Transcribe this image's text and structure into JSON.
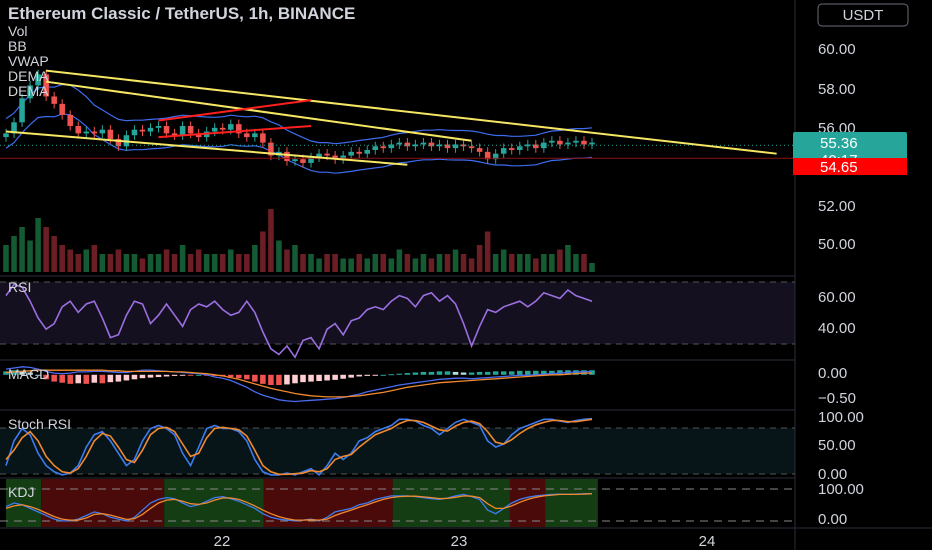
{
  "header": {
    "title": "Ethereum Classic / TetherUS, 1h, BINANCE",
    "currency_button": "USDT",
    "indicators": [
      "Vol",
      "BB",
      "VWAP",
      "DEMA",
      "DEMA"
    ]
  },
  "price_badges": [
    {
      "text": "55.36",
      "color": "#26a69a"
    },
    {
      "text": "40:17",
      "color": "#26a69a"
    },
    {
      "text": "54.65",
      "color": "#ff0000"
    }
  ],
  "colors": {
    "up": "#26a69a",
    "down": "#ef5350",
    "trendline": "#f5e663",
    "channel": "#ff1f1f",
    "bb": "#3d6cf0",
    "rsi": "#9b6fe0",
    "macd_line": "#4a6cf0",
    "signal_line": "#f08a30",
    "stoch_k": "#3d7cf0",
    "stoch_d": "#f08a30"
  },
  "chart_data": [
    {
      "panel": "price",
      "type": "candlestick",
      "x_ticks": [
        "22",
        "23",
        "24"
      ],
      "y_ticks": [
        "60.00",
        "58.00",
        "56.00",
        "52.00",
        "50.00"
      ],
      "ylim": [
        48.6,
        61.6
      ],
      "close": [
        56.0,
        56.6,
        57.9,
        58.6,
        59.2,
        58.0,
        57.6,
        57.0,
        56.4,
        56.0,
        56.1,
        56.0,
        56.2,
        55.7,
        55.3,
        55.9,
        56.2,
        56.1,
        56.3,
        56.4,
        56.0,
        55.9,
        56.4,
        56.0,
        55.8,
        56.1,
        56.3,
        56.2,
        56.5,
        56.0,
        55.8,
        56.0,
        55.5,
        54.8,
        55.0,
        54.5,
        54.6,
        54.4,
        54.7,
        54.9,
        54.8,
        54.6,
        54.8,
        55.0,
        54.9,
        55.1,
        55.3,
        55.2,
        55.4,
        55.5,
        55.3,
        55.4,
        55.5,
        55.3,
        55.4,
        55.2,
        55.4,
        55.3,
        55.2,
        55.0,
        54.6,
        54.9,
        55.2,
        55.1,
        55.3,
        55.4,
        55.2,
        55.5,
        55.6,
        55.4,
        55.5,
        55.6,
        55.4,
        55.5
      ],
      "volume": [
        0.3,
        0.4,
        0.5,
        0.35,
        0.6,
        0.5,
        0.4,
        0.3,
        0.25,
        0.2,
        0.25,
        0.3,
        0.2,
        0.2,
        0.25,
        0.2,
        0.2,
        0.15,
        0.2,
        0.2,
        0.25,
        0.2,
        0.3,
        0.2,
        0.25,
        0.2,
        0.2,
        0.2,
        0.25,
        0.2,
        0.2,
        0.3,
        0.45,
        0.7,
        0.35,
        0.25,
        0.3,
        0.2,
        0.2,
        0.15,
        0.2,
        0.2,
        0.15,
        0.15,
        0.2,
        0.15,
        0.2,
        0.2,
        0.15,
        0.25,
        0.2,
        0.15,
        0.2,
        0.15,
        0.2,
        0.2,
        0.25,
        0.2,
        0.15,
        0.3,
        0.45,
        0.2,
        0.25,
        0.2,
        0.2,
        0.2,
        0.15,
        0.2,
        0.2,
        0.25,
        0.3,
        0.2,
        0.2,
        0.1
      ]
    },
    {
      "panel": "rsi",
      "type": "line",
      "title": "RSI",
      "y_ticks": [
        "60.00",
        "40.00"
      ],
      "ylim": [
        20,
        80
      ],
      "values": [
        66,
        74,
        72,
        62,
        50,
        42,
        46,
        58,
        62,
        54,
        60,
        62,
        50,
        36,
        38,
        52,
        62,
        60,
        46,
        52,
        60,
        52,
        44,
        56,
        60,
        58,
        62,
        56,
        52,
        54,
        62,
        54,
        40,
        28,
        24,
        30,
        22,
        34,
        36,
        28,
        42,
        46,
        38,
        48,
        50,
        56,
        58,
        56,
        62,
        66,
        64,
        58,
        66,
        68,
        62,
        66,
        60,
        46,
        30,
        44,
        56,
        54,
        58,
        60,
        62,
        58,
        62,
        68,
        66,
        64,
        70,
        66,
        64,
        62
      ]
    },
    {
      "panel": "macd",
      "type": "bar",
      "title": "MACD",
      "y_ticks": [
        "0.00",
        "−0.50"
      ],
      "ylim": [
        -0.62,
        0.26
      ],
      "histogram": [
        0.06,
        0.08,
        0.07,
        0.04,
        0.0,
        -0.08,
        -0.12,
        -0.14,
        -0.16,
        -0.15,
        -0.16,
        -0.14,
        -0.15,
        -0.13,
        -0.12,
        -0.1,
        -0.08,
        -0.06,
        -0.05,
        -0.04,
        -0.03,
        -0.02,
        -0.01,
        -0.01,
        0.0,
        -0.01,
        -0.02,
        -0.03,
        -0.04,
        -0.06,
        -0.08,
        -0.12,
        -0.16,
        -0.18,
        -0.18,
        -0.17,
        -0.15,
        -0.13,
        -0.12,
        -0.11,
        -0.1,
        -0.09,
        -0.07,
        -0.05,
        -0.03,
        -0.02,
        -0.01,
        0.0,
        0.01,
        0.02,
        0.03,
        0.04,
        0.05,
        0.05,
        0.06,
        0.06,
        0.05,
        0.04,
        0.04,
        0.05,
        0.05,
        0.06,
        0.06,
        0.06,
        0.07,
        0.07,
        0.07,
        0.07,
        0.07,
        0.08,
        0.08,
        0.08,
        0.08,
        0.08
      ],
      "macd": [
        0.1,
        0.12,
        0.14,
        0.13,
        0.1,
        0.06,
        0.03,
        0.02,
        0.03,
        0.05,
        0.05,
        0.06,
        0.06,
        0.05,
        0.04,
        0.04,
        0.06,
        0.08,
        0.08,
        0.07,
        0.06,
        0.05,
        0.04,
        0.03,
        0.02,
        0.0,
        -0.04,
        -0.06,
        -0.1,
        -0.16,
        -0.22,
        -0.3,
        -0.36,
        -0.4,
        -0.44,
        -0.46,
        -0.47,
        -0.46,
        -0.45,
        -0.44,
        -0.43,
        -0.42,
        -0.4,
        -0.37,
        -0.34,
        -0.3,
        -0.27,
        -0.24,
        -0.21,
        -0.18,
        -0.16,
        -0.14,
        -0.12,
        -0.1,
        -0.08,
        -0.07,
        -0.06,
        -0.06,
        -0.07,
        -0.06,
        -0.05,
        -0.04,
        -0.03,
        -0.02,
        -0.01,
        -0.01,
        0.0,
        0.01,
        0.02,
        0.03,
        0.04,
        0.05,
        0.05,
        0.06
      ],
      "signal": [
        0.04,
        0.05,
        0.06,
        0.07,
        0.08,
        0.08,
        0.08,
        0.08,
        0.08,
        0.08,
        0.08,
        0.08,
        0.08,
        0.07,
        0.07,
        0.06,
        0.06,
        0.06,
        0.06,
        0.06,
        0.06,
        0.05,
        0.05,
        0.04,
        0.03,
        0.02,
        0.0,
        -0.02,
        -0.05,
        -0.08,
        -0.12,
        -0.16,
        -0.2,
        -0.24,
        -0.27,
        -0.3,
        -0.33,
        -0.35,
        -0.37,
        -0.38,
        -0.39,
        -0.39,
        -0.39,
        -0.38,
        -0.37,
        -0.35,
        -0.33,
        -0.31,
        -0.28,
        -0.25,
        -0.22,
        -0.2,
        -0.18,
        -0.16,
        -0.14,
        -0.13,
        -0.12,
        -0.11,
        -0.1,
        -0.09,
        -0.08,
        -0.07,
        -0.06,
        -0.05,
        -0.04,
        -0.03,
        -0.02,
        -0.01,
        0.0,
        0.0,
        0.01,
        0.02,
        0.03,
        0.03
      ]
    },
    {
      "panel": "stoch_rsi",
      "type": "line",
      "title": "Stoch RSI",
      "y_ticks": [
        "100.00",
        "50.00",
        "0.00"
      ],
      "ylim": [
        0,
        110
      ],
      "k": [
        20,
        60,
        80,
        70,
        40,
        20,
        10,
        5,
        8,
        20,
        50,
        70,
        75,
        60,
        40,
        20,
        30,
        60,
        80,
        85,
        80,
        70,
        40,
        20,
        50,
        80,
        85,
        80,
        80,
        75,
        60,
        30,
        10,
        5,
        5,
        8,
        5,
        10,
        15,
        5,
        20,
        40,
        30,
        40,
        60,
        65,
        75,
        80,
        85,
        95,
        95,
        92,
        85,
        80,
        70,
        80,
        90,
        95,
        90,
        85,
        60,
        50,
        55,
        70,
        80,
        85,
        90,
        95,
        95,
        92,
        90,
        93,
        95,
        96
      ],
      "d": [
        30,
        45,
        65,
        75,
        60,
        35,
        20,
        10,
        8,
        15,
        35,
        60,
        72,
        68,
        50,
        30,
        25,
        45,
        70,
        80,
        82,
        75,
        55,
        35,
        40,
        65,
        80,
        82,
        80,
        78,
        68,
        45,
        20,
        10,
        6,
        6,
        7,
        8,
        12,
        10,
        15,
        30,
        35,
        38,
        50,
        60,
        70,
        75,
        80,
        88,
        93,
        93,
        90,
        84,
        78,
        76,
        84,
        90,
        92,
        88,
        75,
        58,
        55,
        62,
        72,
        80,
        86,
        90,
        93,
        93,
        91,
        91,
        93,
        95
      ]
    },
    {
      "panel": "kdj",
      "type": "line",
      "title": "KDJ",
      "y_ticks": [
        "100.00",
        "0.00"
      ],
      "ylim": [
        -10,
        130
      ],
      "k": [
        50,
        60,
        55,
        45,
        35,
        25,
        15,
        10,
        10,
        15,
        25,
        35,
        30,
        20,
        15,
        10,
        20,
        40,
        60,
        70,
        75,
        72,
        60,
        50,
        55,
        65,
        75,
        78,
        72,
        65,
        55,
        45,
        30,
        20,
        15,
        12,
        10,
        12,
        15,
        10,
        20,
        35,
        40,
        45,
        55,
        60,
        70,
        75,
        80,
        80,
        80,
        78,
        75,
        72,
        70,
        74,
        80,
        84,
        78,
        70,
        40,
        30,
        45,
        60,
        70,
        76,
        80,
        82,
        84,
        85,
        84,
        85,
        86,
        86
      ],
      "d": [
        45,
        52,
        55,
        50,
        42,
        32,
        22,
        15,
        12,
        12,
        18,
        28,
        30,
        26,
        20,
        14,
        16,
        28,
        45,
        60,
        68,
        70,
        65,
        58,
        56,
        60,
        68,
        74,
        74,
        70,
        62,
        52,
        40,
        30,
        22,
        16,
        12,
        12,
        13,
        12,
        15,
        25,
        33,
        40,
        48,
        55,
        63,
        70,
        75,
        78,
        79,
        79,
        77,
        75,
        72,
        73,
        76,
        80,
        79,
        75,
        58,
        45,
        45,
        52,
        62,
        70,
        76,
        80,
        82,
        84,
        84,
        84,
        85,
        86
      ]
    }
  ]
}
